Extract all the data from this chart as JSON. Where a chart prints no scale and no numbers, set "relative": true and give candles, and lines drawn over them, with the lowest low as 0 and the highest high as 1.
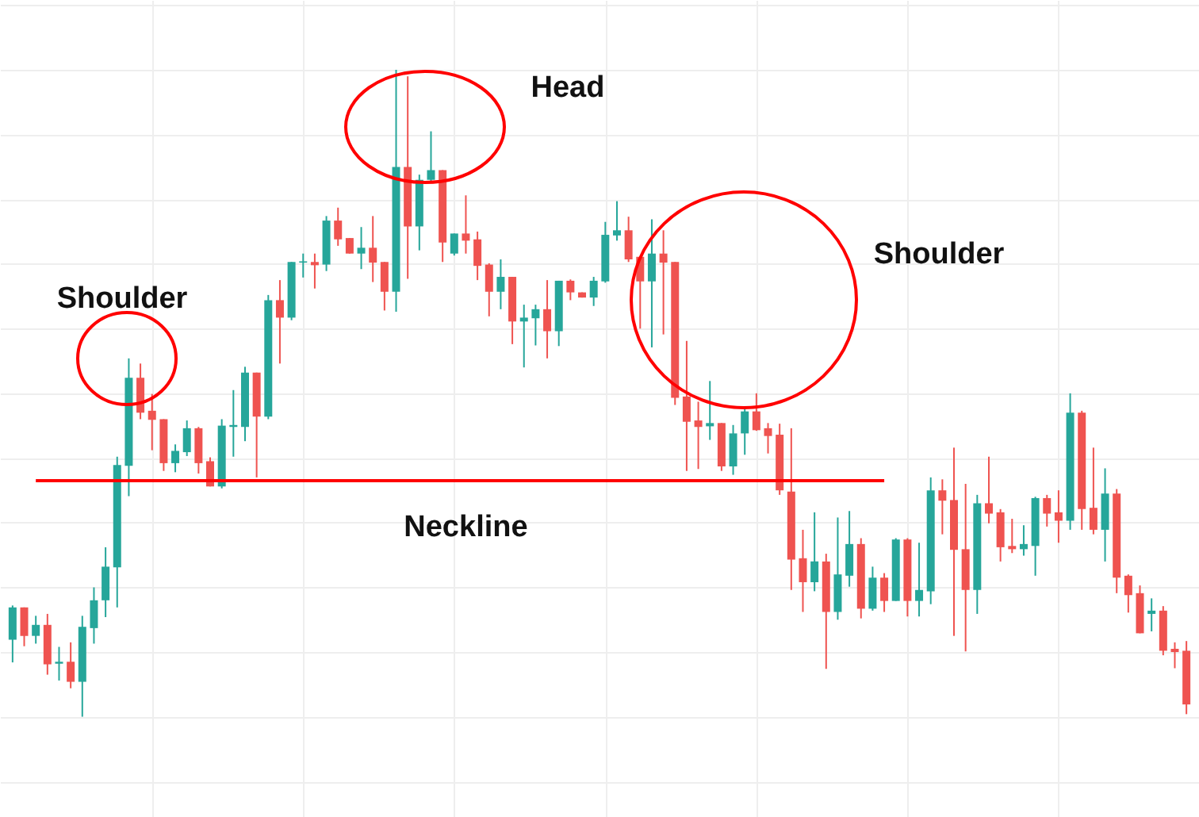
{
  "chart_data": {
    "type": "candlestick",
    "relative": true,
    "grid": true,
    "annotations": [
      "Shoulder",
      "Head",
      "Shoulder"
    ],
    "categories": [
      null,
      null,
      null,
      null,
      null,
      null,
      null,
      null,
      null,
      null,
      null,
      null,
      null,
      null,
      null,
      null,
      null,
      null,
      null,
      null,
      null,
      null,
      null,
      null,
      null,
      null,
      null,
      null,
      null,
      null,
      null,
      null,
      null,
      null,
      null,
      null,
      null,
      null,
      null,
      null,
      null,
      null,
      null,
      null,
      null,
      null,
      null,
      null,
      null,
      null,
      null,
      null,
      null,
      null,
      null,
      null,
      null,
      null,
      null,
      null,
      null,
      null,
      null,
      null,
      null,
      null,
      null,
      null,
      null,
      null,
      null,
      null,
      null,
      null,
      null,
      null,
      null,
      null,
      null,
      null,
      null,
      null,
      null,
      null,
      null,
      null,
      null,
      null,
      null,
      null,
      null,
      null,
      null,
      null,
      null,
      null,
      null,
      null,
      null,
      null,
      null,
      null
    ],
    "ohlc": [
      [
        0.119,
        0.172,
        0.084,
        0.169
      ],
      [
        0.169,
        0.169,
        0.109,
        0.125
      ],
      [
        0.125,
        0.156,
        0.113,
        0.142
      ],
      [
        0.142,
        0.159,
        0.065,
        0.081
      ],
      [
        0.082,
        0.108,
        0.056,
        0.085
      ],
      [
        0.085,
        0.115,
        0.044,
        0.054
      ],
      [
        0.054,
        0.156,
        0,
        0.139
      ],
      [
        0.137,
        0.2,
        0.113,
        0.18
      ],
      [
        0.18,
        0.262,
        0.154,
        0.232
      ],
      [
        0.231,
        0.402,
        0.169,
        0.389
      ],
      [
        0.388,
        0.554,
        0.341,
        0.524
      ],
      [
        0.524,
        0.546,
        0.46,
        0.47
      ],
      [
        0.473,
        0.499,
        0.412,
        0.459
      ],
      [
        0.46,
        0.46,
        0.38,
        0.392
      ],
      [
        0.392,
        0.421,
        0.378,
        0.411
      ],
      [
        0.409,
        0.458,
        0.403,
        0.446
      ],
      [
        0.446,
        0.448,
        0.376,
        0.392
      ],
      [
        0.395,
        0.401,
        0.356,
        0.356
      ],
      [
        0.356,
        0.46,
        0.353,
        0.45
      ],
      [
        0.448,
        0.505,
        0.402,
        0.451
      ],
      [
        0.448,
        0.541,
        0.426,
        0.532
      ],
      [
        0.532,
        0.532,
        0.37,
        0.464
      ],
      [
        0.464,
        0.652,
        0.46,
        0.644
      ],
      [
        0.644,
        0.675,
        0.546,
        0.617
      ],
      [
        0.617,
        0.703,
        0.613,
        0.703
      ],
      [
        0.702,
        0.716,
        0.679,
        0.704
      ],
      [
        0.703,
        0.716,
        0.662,
        0.698
      ],
      [
        0.699,
        0.774,
        0.689,
        0.767
      ],
      [
        0.767,
        0.787,
        0.728,
        0.738
      ],
      [
        0.74,
        0.74,
        0.716,
        0.716
      ],
      [
        0.716,
        0.757,
        0.692,
        0.725
      ],
      [
        0.725,
        0.774,
        0.672,
        0.702
      ],
      [
        0.703,
        0.703,
        0.628,
        0.657
      ],
      [
        0.657,
        1,
        0.626,
        0.85
      ],
      [
        0.85,
        0.99,
        0.677,
        0.758
      ],
      [
        0.758,
        0.838,
        0.721,
        0.83
      ],
      [
        0.83,
        0.905,
        0.826,
        0.845
      ],
      [
        0.845,
        0.845,
        0.703,
        0.733
      ],
      [
        0.716,
        0.747,
        0.713,
        0.747
      ],
      [
        0.747,
        0.806,
        0.716,
        0.736
      ],
      [
        0.738,
        0.75,
        0.675,
        0.697
      ],
      [
        0.699,
        0.701,
        0.619,
        0.657
      ],
      [
        0.657,
        0.707,
        0.63,
        0.68
      ],
      [
        0.68,
        0.68,
        0.576,
        0.611
      ],
      [
        0.611,
        0.637,
        0.54,
        0.617
      ],
      [
        0.616,
        0.637,
        0.574,
        0.63
      ],
      [
        0.63,
        0.675,
        0.554,
        0.596
      ],
      [
        0.596,
        0.674,
        0.573,
        0.674
      ],
      [
        0.674,
        0.676,
        0.644,
        0.656
      ],
      [
        0.656,
        0.656,
        0.648,
        0.648
      ],
      [
        0.648,
        0.68,
        0.635,
        0.674
      ],
      [
        0.673,
        0.765,
        0.671,
        0.745
      ],
      [
        0.744,
        0.797,
        0.736,
        0.752
      ],
      [
        0.752,
        0.773,
        0.703,
        0.707
      ],
      [
        0.711,
        0.711,
        0.6,
        0.673
      ],
      [
        0.673,
        0.769,
        0.571,
        0.716
      ],
      [
        0.716,
        0.752,
        0.591,
        0.702
      ],
      [
        0.703,
        0.703,
        0.482,
        0.493
      ],
      [
        0.495,
        0.581,
        0.38,
        0.456
      ],
      [
        0.458,
        0.487,
        0.383,
        0.448
      ],
      [
        0.449,
        0.519,
        0.428,
        0.454
      ],
      [
        0.454,
        0.454,
        0.38,
        0.387
      ],
      [
        0.387,
        0.451,
        0.374,
        0.438
      ],
      [
        0.438,
        0.478,
        0.405,
        0.472
      ],
      [
        0.472,
        0.5,
        0.442,
        0.443
      ],
      [
        0.446,
        0.454,
        0.407,
        0.434
      ],
      [
        0.436,
        0.453,
        0.343,
        0.35
      ],
      [
        0.348,
        0.446,
        0.196,
        0.243
      ],
      [
        0.245,
        0.289,
        0.162,
        0.208
      ],
      [
        0.208,
        0.316,
        0.194,
        0.24
      ],
      [
        0.24,
        0.252,
        0.074,
        0.162
      ],
      [
        0.162,
        0.308,
        0.15,
        0.22
      ],
      [
        0.218,
        0.318,
        0.201,
        0.267
      ],
      [
        0.267,
        0.276,
        0.152,
        0.167
      ],
      [
        0.167,
        0.232,
        0.164,
        0.215
      ],
      [
        0.215,
        0.222,
        0.162,
        0.179
      ],
      [
        0.179,
        0.276,
        0.179,
        0.274
      ],
      [
        0.274,
        0.276,
        0.155,
        0.179
      ],
      [
        0.179,
        0.269,
        0.155,
        0.196
      ],
      [
        0.194,
        0.37,
        0.174,
        0.35
      ],
      [
        0.35,
        0.367,
        0.282,
        0.334
      ],
      [
        0.335,
        0.416,
        0.125,
        0.258
      ],
      [
        0.259,
        0.36,
        0.101,
        0.196
      ],
      [
        0.196,
        0.343,
        0.159,
        0.33
      ],
      [
        0.33,
        0.402,
        0.299,
        0.314
      ],
      [
        0.316,
        0.321,
        0.24,
        0.262
      ],
      [
        0.264,
        0.306,
        0.253,
        0.259
      ],
      [
        0.259,
        0.296,
        0.249,
        0.267
      ],
      [
        0.264,
        0.34,
        0.218,
        0.338
      ],
      [
        0.338,
        0.343,
        0.294,
        0.314
      ],
      [
        0.316,
        0.35,
        0.269,
        0.303
      ],
      [
        0.303,
        0.5,
        0.289,
        0.47
      ],
      [
        0.47,
        0.473,
        0.289,
        0.321
      ],
      [
        0.323,
        0.416,
        0.282,
        0.289
      ],
      [
        0.289,
        0.384,
        0.24,
        0.345
      ],
      [
        0.345,
        0.352,
        0.191,
        0.215
      ],
      [
        0.218,
        0.22,
        0.161,
        0.188
      ],
      [
        0.191,
        0.203,
        0.129,
        0.129
      ],
      [
        0.159,
        0.183,
        0.132,
        0.164
      ],
      [
        0.164,
        0.171,
        0.095,
        0.102
      ],
      [
        0.105,
        0.115,
        0.075,
        0.1
      ],
      [
        0.102,
        0.117,
        0.004,
        0.019
      ]
    ],
    "series": [
      {
        "type": "line",
        "name": "Neckline",
        "color": "#ff0000",
        "values": [
          null,
          null,
          0.365,
          0.365,
          0.365,
          0.365,
          0.365,
          0.365,
          0.365,
          0.365,
          0.365,
          0.365,
          0.365,
          0.365,
          0.365,
          0.365,
          0.365,
          0.365,
          0.365,
          0.365,
          0.365,
          0.365,
          0.365,
          0.365,
          0.365,
          0.365,
          0.365,
          0.365,
          0.365,
          0.365,
          0.365,
          0.365,
          0.365,
          0.365,
          0.365,
          0.365,
          0.365,
          0.365,
          0.365,
          0.365,
          0.365,
          0.365,
          0.365,
          0.365,
          0.365,
          0.365,
          0.365,
          0.365,
          0.365,
          0.365,
          0.365,
          0.365,
          0.365,
          0.365,
          0.365,
          0.365,
          0.365,
          0.365,
          0.365,
          0.365,
          0.365,
          0.365,
          0.365,
          0.365,
          0.365,
          0.365,
          0.365,
          0.365,
          0.365,
          0.365,
          0.365,
          0.365,
          0.365,
          0.365,
          0.365,
          0.365,
          null,
          null,
          null,
          null,
          null,
          null,
          null,
          null,
          null,
          null,
          null,
          null,
          null,
          null,
          null,
          null,
          null,
          null,
          null,
          null,
          null,
          null,
          null,
          null,
          null,
          null
        ]
      }
    ]
  }
}
